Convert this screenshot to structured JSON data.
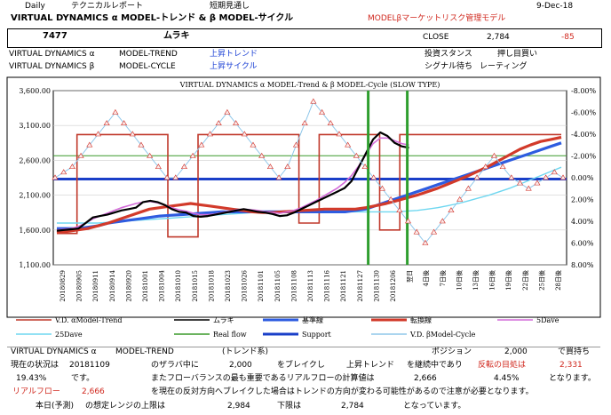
{
  "header": {
    "daily": "Daily",
    "report": "テクニカルレポート",
    "outlook": "短期見通し",
    "date": "9-Dec-18",
    "title": "VIRTUAL DYNAMICS α MODEL-トレンド & β MODEL-サイクル",
    "subtitle_model": "MODELβマーケットリスク管理モデル"
  },
  "ticker": {
    "code": "7477",
    "name": "ムラキ",
    "close_label": "CLOSE",
    "close": "2,784",
    "change": "-85"
  },
  "model_rows": [
    {
      "label": "VIRTUAL DYNAMICS α",
      "model": "MODEL-TREND",
      "value": "上昇トレンド",
      "stance_label": "投資スタンス",
      "stance": "押し目買い"
    },
    {
      "label": "VIRTUAL DYNAMICS β",
      "model": "MODEL-CYCLE",
      "value": "上昇サイクル",
      "stance_label": "シグナル待ち",
      "stance": "レーティング"
    }
  ],
  "chart_data": {
    "type": "line",
    "title": "VIRTUAL DYNAMICS α MODEL-Trend & β MODEL-Cycle (SLOW TYPE)",
    "ylim": [
      1100,
      3600
    ],
    "yticks": [
      "3,600.00",
      "3,100.00",
      "2,600.00",
      "2,100.00",
      "1,600.00",
      "1,100.00"
    ],
    "y2lim": [
      -8,
      8
    ],
    "y2ticks": [
      "-8.00%",
      "-6.00%",
      "-4.00%",
      "-2.00%",
      "0.00%",
      "2.00%",
      "4.00%",
      "6.00%",
      "8.00%"
    ],
    "x_labels": [
      "20180829",
      "20180905",
      "20180911",
      "20180914",
      "20180920",
      "20181001",
      "20181004",
      "20181010",
      "20181015",
      "20181018",
      "20181023",
      "20181026",
      "20181101",
      "20181105",
      "20181108",
      "20181113",
      "20181116",
      "20181121",
      "20181127",
      "20181130",
      "20181206",
      "翌日",
      "4日後",
      "7日後",
      "10日後",
      "13日後",
      "16日後",
      "19日後",
      "22日後",
      "25日後",
      "28日後"
    ],
    "price_mura": [
      1590,
      1600,
      1610,
      1620,
      1700,
      1780,
      1800,
      1820,
      1850,
      1880,
      1900,
      1920,
      2000,
      2020,
      2000,
      1960,
      1900,
      1860,
      1850,
      1800,
      1790,
      1800,
      1820,
      1840,
      1860,
      1880,
      1900,
      1880,
      1860,
      1850,
      1830,
      1800,
      1810,
      1850,
      1900,
      1950,
      2000,
      2050,
      2100,
      2150,
      2200,
      2300,
      2500,
      2700,
      2900,
      3000,
      2950,
      2850,
      2800,
      2780
    ],
    "trend_alpha": [
      1550,
      1550,
      2970,
      2970,
      2970,
      2970,
      2970,
      2970,
      2970,
      2970,
      2970,
      1500,
      1500,
      1500,
      2970,
      2970,
      2970,
      2970,
      2970,
      2970,
      2970,
      2970,
      2970,
      2970,
      1700,
      1700,
      2970,
      2970,
      2970,
      2970,
      2970,
      2970,
      1600,
      1600,
      2970,
      2970,
      2970,
      2970,
      2970,
      2970,
      2970,
      2970,
      2970,
      2970,
      2970,
      2970,
      2970,
      2970,
      2970,
      2970
    ],
    "base_line": [
      1620,
      1620,
      1620,
      1640,
      1660,
      1700,
      1720,
      1740,
      1760,
      1780,
      1800,
      1810,
      1820,
      1830,
      1840,
      1850,
      1860,
      1860,
      1860,
      1860,
      1860,
      1860,
      1860,
      1860,
      1860,
      1860,
      1860,
      1860,
      1860,
      1880,
      1900,
      1950,
      2000,
      2050,
      2100,
      2150,
      2200,
      2250,
      2300,
      2350,
      2400,
      2450,
      2500,
      2550,
      2600,
      2650,
      2700,
      2750,
      2800,
      2850
    ],
    "turn_line": [
      1560,
      1580,
      1600,
      1620,
      1660,
      1700,
      1750,
      1800,
      1850,
      1900,
      1920,
      1940,
      1960,
      1980,
      1960,
      1940,
      1920,
      1900,
      1880,
      1860,
      1850,
      1850,
      1860,
      1870,
      1880,
      1890,
      1900,
      1900,
      1900,
      1900,
      1920,
      1950,
      1980,
      2020,
      2060,
      2100,
      2150,
      2200,
      2260,
      2320,
      2380,
      2450,
      2520,
      2600,
      2680,
      2760,
      2820,
      2870,
      2900,
      2930
    ],
    "ma5": [
      1600,
      1610,
      1620,
      1650,
      1700,
      1760,
      1800,
      1840,
      1880,
      1920,
      1950,
      1980,
      2000,
      2010,
      1990,
      1960,
      1920,
      1890,
      1870,
      1840,
      1820,
      1820,
      1830,
      1850,
      1870,
      1890,
      1900,
      1890,
      1880,
      1860,
      1850,
      1840,
      1860,
      1880,
      1920,
      1970,
      2020,
      2080,
      2140,
      2200,
      2280,
      2380,
      2520,
      2680,
      2840,
      2920,
      2920,
      2880,
      2840,
      2820
    ],
    "ma25": [
      1700,
      1700,
      1700,
      1700,
      1700,
      1710,
      1720,
      1730,
      1740,
      1750,
      1760,
      1770,
      1780,
      1790,
      1800,
      1810,
      1820,
      1830,
      1840,
      1850,
      1860,
      1860,
      1860,
      1860,
      1860,
      1860,
      1860,
      1860,
      1860,
      1860,
      1860,
      1860,
      1860,
      1860,
      1870,
      1880,
      1900,
      1920,
      1950,
      1980,
      2020,
      2060,
      2100,
      2150,
      2200,
      2260,
      2320,
      2380,
      2440,
      2500
    ],
    "real_flow": [
      2666
    ],
    "support": [
      2331
    ],
    "cycle_beta_pct": [
      0,
      -0.5,
      -1,
      -2,
      -3,
      -4,
      -5,
      -6,
      -5,
      -4,
      -3,
      -2,
      -1,
      0,
      0,
      -1,
      -2,
      -3,
      -4,
      -5,
      -6,
      -5,
      -4,
      -3,
      -2,
      -1,
      0,
      -1,
      -3,
      -5,
      -7,
      -6,
      -5,
      -4,
      -3,
      -2,
      -1,
      0,
      1,
      2,
      3,
      4,
      5,
      6,
      5,
      4,
      3,
      2,
      1,
      0,
      -1,
      -2,
      -1,
      0,
      0.5,
      1,
      0.5,
      0,
      -0.5,
      0
    ]
  },
  "legend": [
    {
      "label": "V.D. αModel-Trend",
      "color": "#c0392b"
    },
    {
      "label": "ムラキ",
      "color": "#000000"
    },
    {
      "label": "基準線",
      "color": "#2e5ce0"
    },
    {
      "label": "転換線",
      "color": "#d23a2a"
    },
    {
      "label": "5Dave",
      "color": "#d36bd9"
    },
    {
      "label": "25Dave",
      "color": "#6fd7f0"
    },
    {
      "label": "Real flow",
      "color": "#3a9a2a"
    },
    {
      "label": "Support",
      "color": "#1a3fc8"
    },
    {
      "label": "V.D. βModel-Cycle",
      "color": "#8fc7ea"
    }
  ],
  "footer": {
    "row1": {
      "label": "VIRTUAL DYNAMICS α",
      "model": "MODEL-TREND",
      "kind": "(トレンド系)",
      "position_label": "ポジション",
      "position": "2,000",
      "action": "で買持ち"
    },
    "row2": {
      "status_label": "現在の状況は",
      "date": "20181109",
      "mid": "のザラバ中に",
      "value": "2,000",
      "break": "をブレイクし",
      "trend": "上昇トレンド",
      "continue": "を継続中であり",
      "target_label": "反転の目処は",
      "target": "2,331"
    },
    "row3": {
      "pct": "19.43%",
      "desu": "です。",
      "text": "またフローバランスの最も重要であるリアルフローの計算値は",
      "value": "2,666",
      "pct2": "4.45%",
      "tail": "となります。"
    },
    "row4": {
      "label": "リアルフロー",
      "value": "2,666",
      "text": "を現在の反対方向へブレイクした場合はトレンドの方向が変わる可能性があるので注意が必要となります。"
    },
    "row5": {
      "label": "本日(予測)",
      "range": "の想定レンジの上限は",
      "high": "2,984",
      "low_label": "下限は",
      "low": "2,784",
      "tail": "となっています。"
    }
  }
}
